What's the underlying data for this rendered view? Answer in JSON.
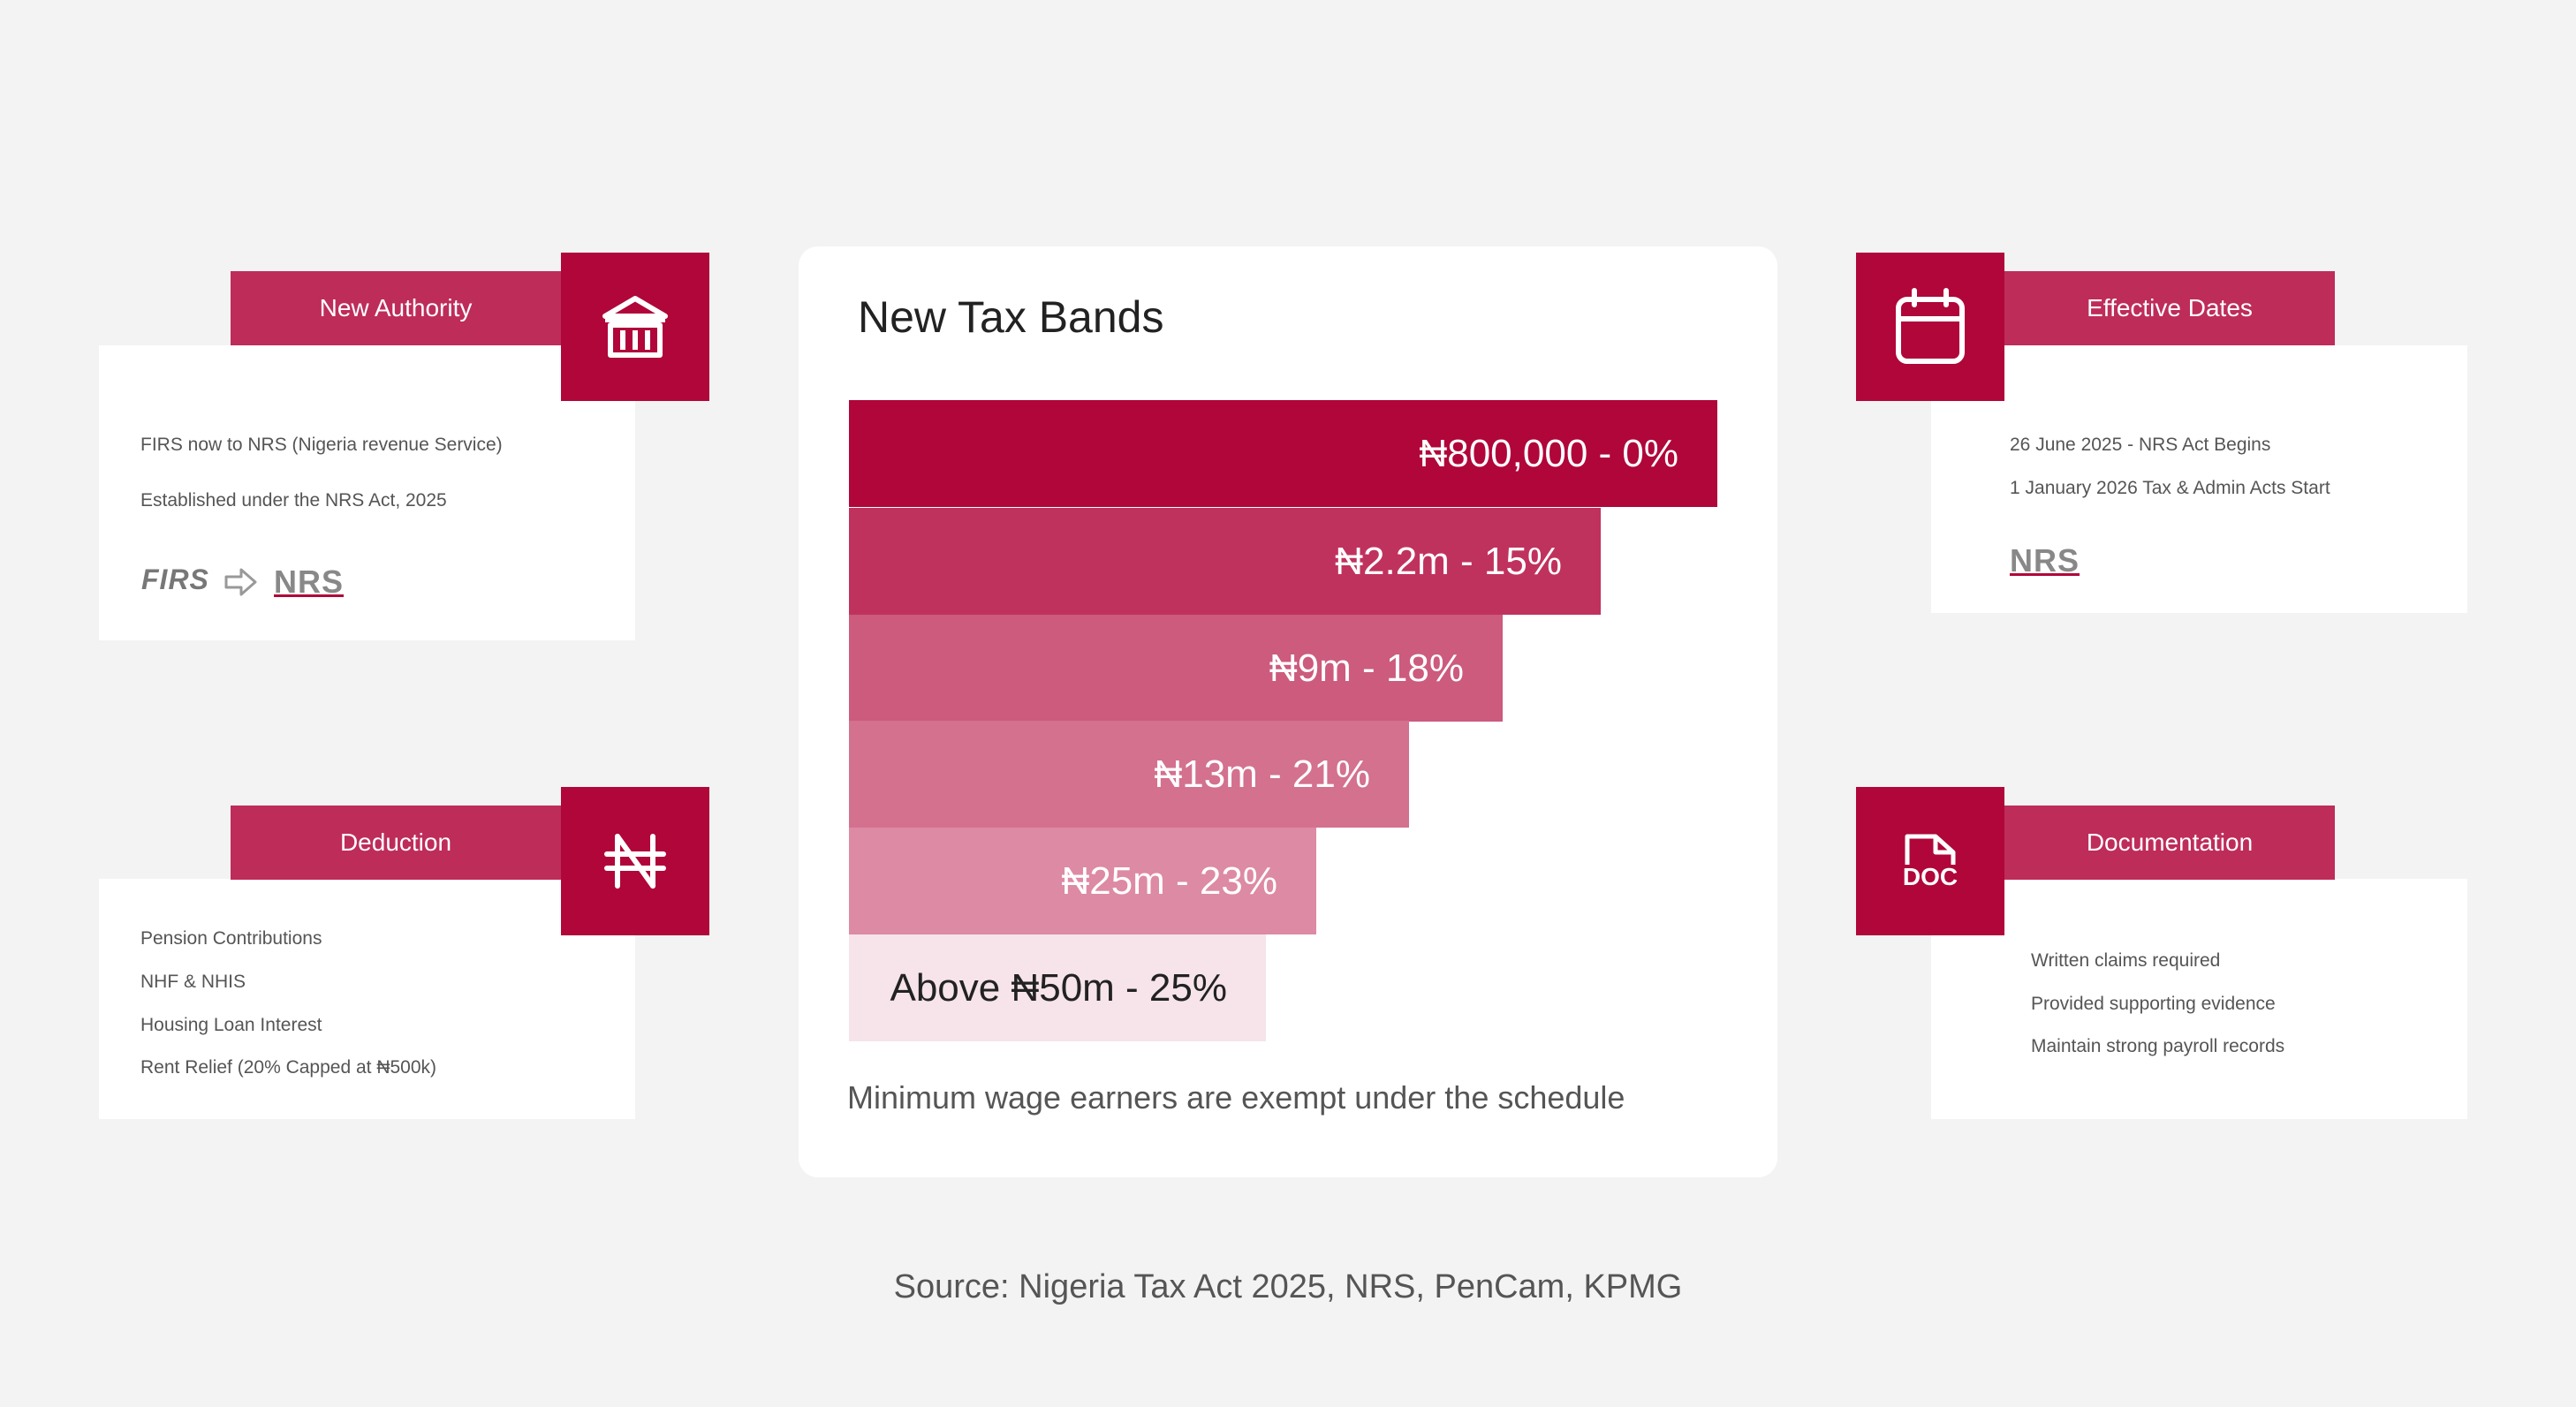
{
  "new_authority": {
    "title": "New Authority",
    "icon": "bank-building-icon",
    "lines": [
      "FIRS now to NRS (Nigeria revenue Service)",
      "Established under the NRS Act, 2025"
    ],
    "logo_from": "FIRS",
    "logo_to": "NRS"
  },
  "deduction": {
    "title": "Deduction",
    "icon": "naira-icon",
    "lines": [
      "Pension Contributions",
      "NHF & NHIS",
      "Housing Loan Interest",
      "Rent Relief (20% Capped at ₦500k)"
    ]
  },
  "effective_dates": {
    "title": "Effective Dates",
    "icon": "calendar-icon",
    "lines": [
      "26 June 2025 - NRS Act Begins",
      "1 January 2026 Tax & Admin Acts Start"
    ],
    "logo": "NRS"
  },
  "documentation": {
    "title": "Documentation",
    "icon": "doc-file-icon",
    "icon_text": "DOC",
    "lines": [
      "Written claims required",
      "Provided supporting evidence",
      "Maintain strong payroll records"
    ]
  },
  "tax_bands": {
    "title": "New Tax Bands",
    "bands": [
      {
        "label": "₦800,000 - 0%",
        "color": "#b0063a"
      },
      {
        "label": "₦2.2m - 15%",
        "color": "#c0325e"
      },
      {
        "label": "₦9m - 18%",
        "color": "#cc5b7e"
      },
      {
        "label": "₦13m - 21%",
        "color": "#d3718f"
      },
      {
        "label": "₦25m - 23%",
        "color": "#dd8aa4"
      },
      {
        "label": "Above ₦50m - 25%",
        "color": "#f6e4ea"
      }
    ],
    "note": "Minimum wage earners are exempt under the schedule"
  },
  "source": "Source: Nigeria Tax Act 2025, NRS, PenCam, KPMG",
  "colors": {
    "accent": "#b0063a",
    "tab": "#be2c5a",
    "background": "#f3f3f3"
  }
}
